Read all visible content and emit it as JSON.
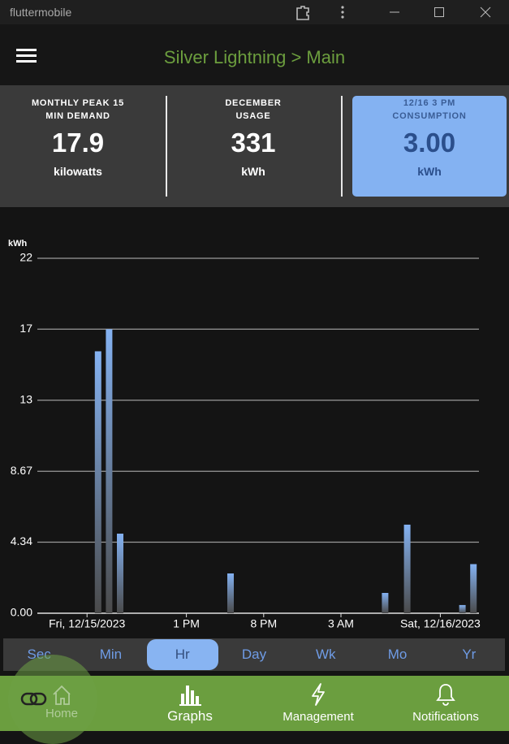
{
  "window": {
    "title": "fluttermobile"
  },
  "app_bar": {
    "title": "Silver Lightning > Main"
  },
  "cards": [
    {
      "label_lines": [
        "MONTHLY PEAK 15",
        "MIN DEMAND"
      ],
      "value": "17.9",
      "unit": "kilowatts"
    },
    {
      "label_lines": [
        "DECEMBER",
        "USAGE"
      ],
      "value": "331",
      "unit": "kWh"
    },
    {
      "label_lines": [
        "12/16 3 PM",
        "CONSUMPTION"
      ],
      "value": "3.00",
      "unit": "kWh"
    }
  ],
  "chart_data": {
    "type": "bar",
    "y_label": "kWh",
    "categories": [
      null,
      null,
      null,
      null,
      "Fri, 12/15/2023",
      null,
      null,
      null,
      null,
      null,
      null,
      null,
      null,
      "1 PM",
      null,
      null,
      null,
      null,
      null,
      null,
      "8 PM",
      null,
      null,
      null,
      null,
      null,
      null,
      "3 AM",
      null,
      null,
      null,
      null,
      null,
      null,
      null,
      null,
      "Sat, 12/16/2023",
      null,
      null,
      null
    ],
    "values": [
      0,
      0,
      0,
      0,
      0,
      16.0,
      17.35,
      4.86,
      0,
      0,
      0,
      0,
      0,
      0,
      0,
      0,
      0,
      2.43,
      0,
      0,
      0,
      0,
      0,
      0,
      0,
      0,
      0,
      0,
      0,
      0,
      0,
      1.24,
      0,
      5.41,
      0,
      0,
      0,
      0,
      0.5,
      3.0
    ],
    "color": "#84b2f2",
    "ylim": [
      0,
      21.68
    ],
    "yticks": [
      {
        "value": 0,
        "label": "0.00"
      },
      4.34,
      8.67,
      {
        "value": 13.01,
        "label": "13"
      },
      {
        "value": 17.35,
        "label": "17"
      },
      {
        "value": 21.68,
        "label": "22"
      }
    ],
    "grid": true
  },
  "range_tabs": {
    "items": [
      "Sec",
      "Min",
      "Hr",
      "Day",
      "Wk",
      "Mo",
      "Yr"
    ],
    "selected": 2
  },
  "nav": {
    "items": [
      "Home",
      "Graphs",
      "Management",
      "Notifications"
    ],
    "selected": 1
  }
}
